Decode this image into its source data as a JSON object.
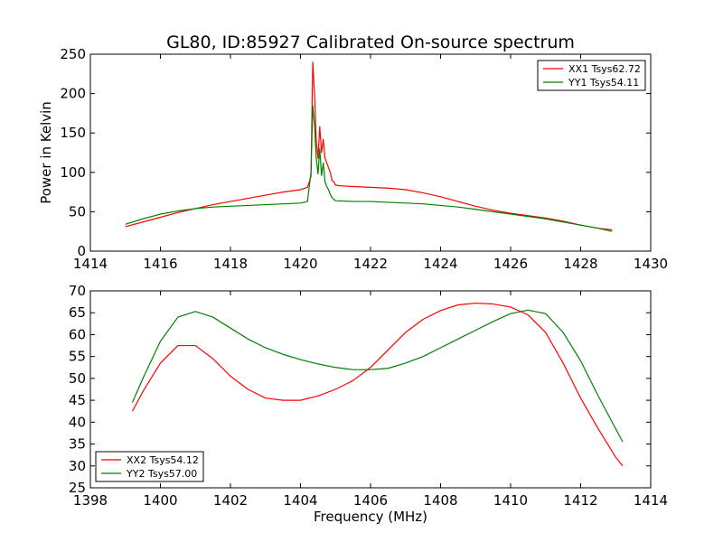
{
  "chart_data": [
    {
      "type": "line",
      "title": "GL80, ID:85927 Calibrated On-source spectrum",
      "xlabel": "",
      "ylabel": "Power in Kelvin",
      "xlim": [
        1414,
        1430
      ],
      "ylim": [
        0,
        250
      ],
      "xticks": [
        "1414",
        "1416",
        "1418",
        "1420",
        "1422",
        "1424",
        "1426",
        "1428",
        "1430"
      ],
      "yticks": [
        "0",
        "50",
        "100",
        "150",
        "200",
        "250"
      ],
      "legend": "top-right",
      "grid": false,
      "series": [
        {
          "name": "XX1 Tsys62.72",
          "color": "#ff0000",
          "x": [
            1415.0,
            1415.5,
            1416.0,
            1416.5,
            1417.0,
            1417.5,
            1418.0,
            1418.5,
            1419.0,
            1419.5,
            1420.0,
            1420.2,
            1420.3,
            1420.35,
            1420.4,
            1420.45,
            1420.5,
            1420.55,
            1420.6,
            1420.65,
            1420.7,
            1420.75,
            1420.8,
            1420.85,
            1420.9,
            1420.95,
            1421.0,
            1421.1,
            1421.5,
            1422.0,
            1422.5,
            1423.0,
            1423.5,
            1424.0,
            1424.5,
            1425.0,
            1425.5,
            1426.0,
            1426.5,
            1427.0,
            1427.5,
            1428.0,
            1428.5,
            1428.9
          ],
          "y": [
            31,
            37,
            43,
            49,
            54,
            59,
            63,
            67,
            71,
            75,
            78,
            81,
            95,
            240,
            200,
            140,
            118,
            158,
            125,
            142,
            118,
            112,
            106,
            100,
            90,
            88,
            84,
            83,
            82,
            81,
            80,
            78,
            74,
            69,
            63,
            57,
            52,
            48,
            45,
            42,
            38,
            33,
            29,
            27
          ]
        },
        {
          "name": "YY1 Tsys54.11",
          "color": "#008000",
          "x": [
            1415.0,
            1415.5,
            1416.0,
            1416.5,
            1417.0,
            1417.5,
            1418.0,
            1418.5,
            1419.0,
            1419.5,
            1420.0,
            1420.2,
            1420.3,
            1420.35,
            1420.4,
            1420.45,
            1420.5,
            1420.55,
            1420.6,
            1420.65,
            1420.7,
            1420.75,
            1420.8,
            1420.85,
            1420.9,
            1420.95,
            1421.0,
            1421.5,
            1422.0,
            1422.5,
            1423.0,
            1423.5,
            1424.0,
            1424.5,
            1425.0,
            1425.5,
            1426.0,
            1426.5,
            1427.0,
            1427.5,
            1428.0,
            1428.5,
            1428.9
          ],
          "y": [
            34,
            41,
            47,
            51,
            54,
            56,
            57,
            58,
            59,
            60,
            61,
            63,
            100,
            185,
            160,
            118,
            98,
            130,
            96,
            112,
            88,
            82,
            78,
            72,
            68,
            66,
            64,
            63,
            63,
            62,
            61,
            60,
            58,
            56,
            53,
            50,
            47,
            44,
            41,
            37,
            33,
            29,
            25
          ]
        }
      ]
    },
    {
      "type": "line",
      "title": "",
      "xlabel": "Frequency (MHz)",
      "ylabel": "",
      "xlim": [
        1398,
        1414
      ],
      "ylim": [
        25,
        70
      ],
      "xticks": [
        "1398",
        "1400",
        "1402",
        "1404",
        "1406",
        "1408",
        "1410",
        "1412",
        "1414"
      ],
      "yticks": [
        "25",
        "30",
        "35",
        "40",
        "45",
        "50",
        "55",
        "60",
        "65",
        "70"
      ],
      "legend": "bottom-left",
      "grid": false,
      "series": [
        {
          "name": "XX2 Tsys54.12",
          "color": "#ff0000",
          "x": [
            1399.2,
            1399.5,
            1400.0,
            1400.5,
            1401.0,
            1401.5,
            1402.0,
            1402.5,
            1403.0,
            1403.5,
            1404.0,
            1404.5,
            1405.0,
            1405.5,
            1406.0,
            1406.5,
            1407.0,
            1407.5,
            1408.0,
            1408.5,
            1409.0,
            1409.5,
            1410.0,
            1410.5,
            1411.0,
            1411.5,
            1412.0,
            1412.5,
            1413.0,
            1413.2
          ],
          "y": [
            42.5,
            47,
            53.5,
            57.5,
            57.5,
            54.5,
            50.5,
            47.5,
            45.5,
            45,
            45,
            46,
            47.5,
            49.5,
            52.5,
            56.5,
            60.5,
            63.5,
            65.5,
            66.8,
            67.2,
            67,
            66.3,
            64.5,
            60.5,
            53.5,
            45.5,
            38.5,
            32,
            30
          ]
        },
        {
          "name": "YY2 Tsys57.00",
          "color": "#008000",
          "x": [
            1399.2,
            1399.5,
            1400.0,
            1400.5,
            1401.0,
            1401.5,
            1402.0,
            1402.5,
            1403.0,
            1403.5,
            1404.0,
            1404.5,
            1405.0,
            1405.5,
            1406.0,
            1406.5,
            1407.0,
            1407.5,
            1408.0,
            1408.5,
            1409.0,
            1409.5,
            1410.0,
            1410.5,
            1411.0,
            1411.5,
            1412.0,
            1412.5,
            1413.0,
            1413.2
          ],
          "y": [
            44.5,
            50,
            58.5,
            64,
            65.3,
            64,
            61.5,
            59,
            57,
            55.5,
            54.3,
            53.3,
            52.5,
            52,
            52,
            52.3,
            53.5,
            55,
            57,
            59,
            61,
            63,
            64.8,
            65.6,
            64.8,
            60.5,
            54,
            46,
            38.5,
            35.5
          ]
        }
      ]
    }
  ]
}
